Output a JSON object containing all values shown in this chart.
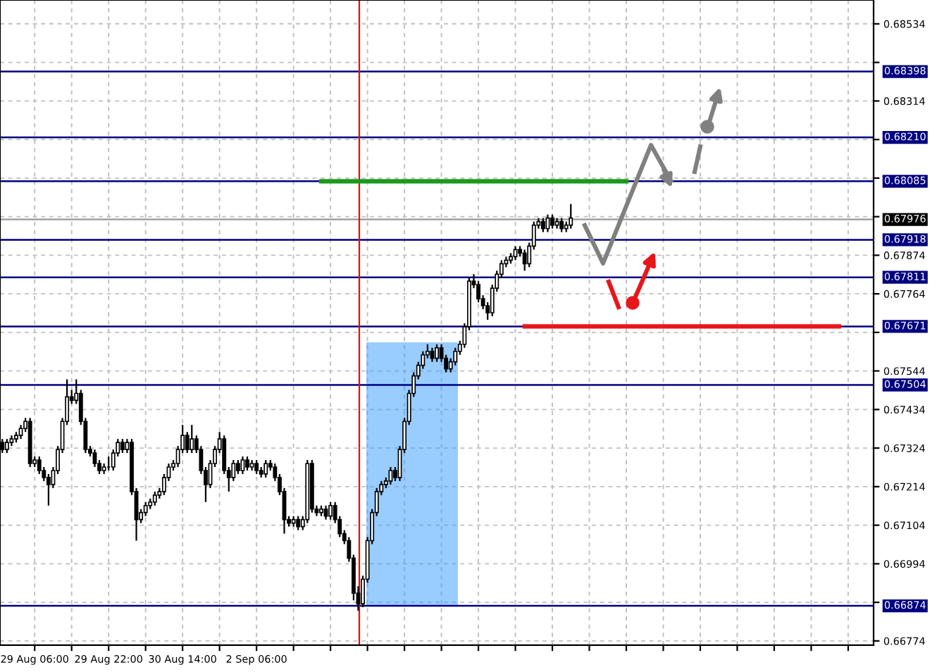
{
  "chart_data": {
    "type": "candlestick",
    "categories": [
      null,
      null,
      null,
      null,
      null,
      null,
      null,
      "29 Aug 06:00",
      null,
      null,
      null,
      null,
      null,
      null,
      null,
      null,
      null,
      null,
      null,
      null,
      null,
      null,
      null,
      "29 Aug 22:00",
      null,
      null,
      null,
      null,
      null,
      null,
      null,
      null,
      null,
      null,
      null,
      null,
      null,
      null,
      null,
      "30 Aug 14:00",
      null,
      null,
      null,
      null,
      null,
      null,
      null,
      null,
      null,
      null,
      null,
      null,
      null,
      null,
      null,
      "2 Sep 06:00",
      null,
      null,
      null,
      null,
      null,
      null,
      null,
      null,
      null,
      null,
      null,
      null,
      null,
      null,
      null,
      null,
      null,
      null,
      null,
      null,
      null,
      null,
      null,
      null,
      null,
      null,
      null,
      null,
      null,
      null,
      null,
      null,
      null,
      null,
      null,
      null,
      null,
      null,
      null,
      null,
      null,
      null,
      null,
      null,
      null,
      null,
      null,
      null,
      null,
      null,
      null,
      null,
      null,
      null,
      null,
      null,
      null,
      null,
      null,
      null,
      null,
      null,
      null,
      null,
      null,
      null,
      null,
      null,
      null,
      null,
      null,
      null,
      null,
      null,
      null,
      null,
      null,
      null,
      null,
      null,
      null,
      null,
      null,
      null,
      null,
      null,
      null,
      null,
      null,
      null,
      null,
      null,
      null,
      null,
      null,
      null,
      null,
      null,
      null,
      null,
      null,
      null,
      null,
      null,
      null,
      null,
      null,
      null,
      null,
      null,
      null,
      null,
      null,
      null,
      null,
      null,
      null,
      null,
      null,
      null,
      null,
      null,
      null,
      null,
      null,
      null,
      null,
      null,
      null,
      null,
      null,
      null,
      null
    ],
    "ohlc": [
      [
        0.6734,
        0.6735,
        0.6731,
        0.6732
      ],
      [
        0.6732,
        0.6735,
        0.6731,
        0.6734
      ],
      [
        0.6734,
        0.6736,
        0.6733,
        0.6735
      ],
      [
        0.6735,
        0.6737,
        0.6734,
        0.6736
      ],
      [
        0.6736,
        0.6739,
        0.6735,
        0.6738
      ],
      [
        0.6738,
        0.6741,
        0.6737,
        0.674
      ],
      [
        0.674,
        0.6741,
        0.6727,
        0.6728
      ],
      [
        0.6728,
        0.673,
        0.6727,
        0.6729
      ],
      [
        0.6729,
        0.673,
        0.6725,
        0.6726
      ],
      [
        0.6726,
        0.6727,
        0.6723,
        0.6724
      ],
      [
        0.6724,
        0.6725,
        0.6716,
        0.6722
      ],
      [
        0.6722,
        0.6727,
        0.6721,
        0.6726
      ],
      [
        0.6726,
        0.6733,
        0.6725,
        0.6732
      ],
      [
        0.6732,
        0.6741,
        0.6731,
        0.674
      ],
      [
        0.674,
        0.6752,
        0.6739,
        0.6747
      ],
      [
        0.6747,
        0.6749,
        0.6745,
        0.6746
      ],
      [
        0.6746,
        0.6752,
        0.6745,
        0.6748
      ],
      [
        0.6748,
        0.6749,
        0.6739,
        0.674
      ],
      [
        0.674,
        0.6741,
        0.6731,
        0.6732
      ],
      [
        0.6732,
        0.6733,
        0.673,
        0.6731
      ],
      [
        0.6731,
        0.6732,
        0.6727,
        0.6728
      ],
      [
        0.6728,
        0.6729,
        0.6725,
        0.6726
      ],
      [
        0.6726,
        0.6728,
        0.6725,
        0.6727
      ],
      [
        0.6727,
        0.673,
        0.6726,
        0.6727
      ],
      [
        0.6727,
        0.6732,
        0.6726,
        0.6731
      ],
      [
        0.6731,
        0.6735,
        0.673,
        0.6734
      ],
      [
        0.6734,
        0.6735,
        0.6731,
        0.6732
      ],
      [
        0.6732,
        0.6735,
        0.6731,
        0.6734
      ],
      [
        0.6734,
        0.6735,
        0.6719,
        0.672
      ],
      [
        0.672,
        0.6721,
        0.6706,
        0.6712
      ],
      [
        0.6712,
        0.6715,
        0.6711,
        0.6714
      ],
      [
        0.6714,
        0.6717,
        0.6713,
        0.6716
      ],
      [
        0.6716,
        0.6718,
        0.6715,
        0.6717
      ],
      [
        0.6717,
        0.672,
        0.6716,
        0.6719
      ],
      [
        0.6719,
        0.6721,
        0.6718,
        0.672
      ],
      [
        0.672,
        0.6725,
        0.6719,
        0.6724
      ],
      [
        0.6724,
        0.6728,
        0.6723,
        0.6727
      ],
      [
        0.6727,
        0.6729,
        0.6726,
        0.6728
      ],
      [
        0.6728,
        0.6733,
        0.6727,
        0.6732
      ],
      [
        0.6732,
        0.6739,
        0.6731,
        0.6736
      ],
      [
        0.6736,
        0.6737,
        0.6731,
        0.6732
      ],
      [
        0.6732,
        0.6739,
        0.6731,
        0.6735
      ],
      [
        0.6735,
        0.6736,
        0.6731,
        0.6732
      ],
      [
        0.6732,
        0.6733,
        0.6725,
        0.6726
      ],
      [
        0.6726,
        0.6727,
        0.6717,
        0.6722
      ],
      [
        0.6722,
        0.6729,
        0.6721,
        0.6728
      ],
      [
        0.6728,
        0.6733,
        0.6727,
        0.6732
      ],
      [
        0.6732,
        0.6737,
        0.6731,
        0.6735
      ],
      [
        0.6735,
        0.6736,
        0.6725,
        0.6726
      ],
      [
        0.6726,
        0.6727,
        0.672,
        0.6724
      ],
      [
        0.6724,
        0.6729,
        0.6723,
        0.6728
      ],
      [
        0.6728,
        0.6729,
        0.6725,
        0.6726
      ],
      [
        0.6726,
        0.673,
        0.6725,
        0.6729
      ],
      [
        0.6729,
        0.673,
        0.6726,
        0.6727
      ],
      [
        0.6727,
        0.6729,
        0.6726,
        0.6728
      ],
      [
        0.6728,
        0.6729,
        0.6725,
        0.6726
      ],
      [
        0.6726,
        0.6727,
        0.6724,
        0.6725
      ],
      [
        0.6725,
        0.6729,
        0.6724,
        0.6728
      ],
      [
        0.6728,
        0.6729,
        0.6726,
        0.6727
      ],
      [
        0.6727,
        0.6728,
        0.6723,
        0.6724
      ],
      [
        0.6724,
        0.6725,
        0.6719,
        0.672
      ],
      [
        0.672,
        0.6721,
        0.6708,
        0.6712
      ],
      [
        0.6712,
        0.6713,
        0.671,
        0.6711
      ],
      [
        0.6711,
        0.6713,
        0.671,
        0.6712
      ],
      [
        0.6712,
        0.6713,
        0.6709,
        0.671
      ],
      [
        0.671,
        0.6713,
        0.6709,
        0.6712
      ],
      [
        0.6712,
        0.6729,
        0.6711,
        0.6728
      ],
      [
        0.6728,
        0.6729,
        0.6714,
        0.6715
      ],
      [
        0.6715,
        0.6716,
        0.6713,
        0.6714
      ],
      [
        0.6714,
        0.6716,
        0.6713,
        0.6715
      ],
      [
        0.6715,
        0.6716,
        0.6712,
        0.6713
      ],
      [
        0.6713,
        0.6717,
        0.6712,
        0.6716
      ],
      [
        0.6716,
        0.6717,
        0.6711,
        0.6712
      ],
      [
        0.6712,
        0.6713,
        0.6707,
        0.6708
      ],
      [
        0.6708,
        0.6709,
        0.6705,
        0.6706
      ],
      [
        0.6706,
        0.6707,
        0.67,
        0.6701
      ],
      [
        0.6701,
        0.6702,
        0.6689,
        0.6691
      ],
      [
        0.6691,
        0.6693,
        0.6686,
        0.6688
      ],
      [
        0.6688,
        0.6696,
        0.6687,
        0.6695
      ],
      [
        0.6695,
        0.6707,
        0.6694,
        0.6706
      ],
      [
        0.6706,
        0.6715,
        0.6705,
        0.6714
      ],
      [
        0.6714,
        0.6721,
        0.6713,
        0.672
      ],
      [
        0.672,
        0.6723,
        0.6719,
        0.6722
      ],
      [
        0.6722,
        0.6724,
        0.6721,
        0.6723
      ],
      [
        0.6723,
        0.6727,
        0.6722,
        0.6726
      ],
      [
        0.6726,
        0.6727,
        0.6723,
        0.6724
      ],
      [
        0.6724,
        0.6733,
        0.6723,
        0.6732
      ],
      [
        0.6732,
        0.6741,
        0.6731,
        0.674
      ],
      [
        0.674,
        0.6749,
        0.6739,
        0.6748
      ],
      [
        0.6748,
        0.6754,
        0.6747,
        0.6753
      ],
      [
        0.6753,
        0.6757,
        0.6752,
        0.6756
      ],
      [
        0.6756,
        0.676,
        0.6755,
        0.6759
      ],
      [
        0.6759,
        0.6762,
        0.6758,
        0.676
      ],
      [
        0.676,
        0.6761,
        0.6757,
        0.6758
      ],
      [
        0.6758,
        0.6762,
        0.6757,
        0.6761
      ],
      [
        0.6761,
        0.6762,
        0.6757,
        0.6758
      ],
      [
        0.6758,
        0.6759,
        0.6754,
        0.6755
      ],
      [
        0.6755,
        0.6758,
        0.6754,
        0.6757
      ],
      [
        0.6757,
        0.6761,
        0.6756,
        0.676
      ],
      [
        0.676,
        0.6763,
        0.6759,
        0.6762
      ],
      [
        0.6762,
        0.6768,
        0.6761,
        0.6767
      ],
      [
        0.6767,
        0.6781,
        0.6766,
        0.678
      ],
      [
        0.678,
        0.6782,
        0.6778,
        0.6779
      ],
      [
        0.6779,
        0.678,
        0.6774,
        0.6775
      ],
      [
        0.6775,
        0.6776,
        0.6772,
        0.6773
      ],
      [
        0.6773,
        0.6774,
        0.6769,
        0.6771
      ],
      [
        0.6771,
        0.6779,
        0.677,
        0.6778
      ],
      [
        0.6778,
        0.6783,
        0.6777,
        0.6782
      ],
      [
        0.6782,
        0.6786,
        0.6781,
        0.6785
      ],
      [
        0.6785,
        0.6787,
        0.6784,
        0.6786
      ],
      [
        0.6786,
        0.6788,
        0.6785,
        0.6787
      ],
      [
        0.6787,
        0.679,
        0.6786,
        0.6789
      ],
      [
        0.6789,
        0.679,
        0.6787,
        0.6788
      ],
      [
        0.6788,
        0.6789,
        0.6783,
        0.6785
      ],
      [
        0.6785,
        0.6791,
        0.6784,
        0.679
      ],
      [
        0.679,
        0.6797,
        0.6789,
        0.6796
      ],
      [
        0.6796,
        0.6798,
        0.6795,
        0.6797
      ],
      [
        0.6797,
        0.6798,
        0.6794,
        0.6795
      ],
      [
        0.6795,
        0.6799,
        0.6794,
        0.6798
      ],
      [
        0.6798,
        0.6799,
        0.6795,
        0.6796
      ],
      [
        0.6796,
        0.6798,
        0.6795,
        0.6797
      ],
      [
        0.6797,
        0.6798,
        0.6794,
        0.6795
      ],
      [
        0.6795,
        0.6797,
        0.6794,
        0.6796
      ],
      [
        0.6796,
        0.6802,
        0.6795,
        0.6798
      ],
      null,
      null,
      null,
      null,
      null,
      null,
      null,
      null,
      null,
      null,
      null,
      null,
      null,
      null,
      null,
      null,
      null,
      null,
      null,
      null,
      null,
      null,
      null,
      null,
      null,
      null,
      null,
      null,
      null,
      null,
      null,
      null,
      null,
      null,
      null,
      null,
      null,
      null,
      null,
      null,
      null,
      null,
      null,
      null,
      null,
      null,
      null,
      null,
      null,
      null,
      null,
      null,
      null,
      null,
      null,
      null,
      null,
      null,
      null,
      null,
      null,
      null,
      null,
      null,
      null
    ],
    "series": [
      {
        "type": "line",
        "color": "#1a9a1a",
        "values": [
          null,
          null,
          null,
          null,
          null,
          null,
          null,
          null,
          null,
          null,
          null,
          null,
          null,
          null,
          null,
          null,
          null,
          null,
          null,
          null,
          null,
          null,
          null,
          null,
          null,
          null,
          null,
          null,
          null,
          null,
          null,
          null,
          null,
          null,
          null,
          null,
          null,
          null,
          null,
          null,
          null,
          null,
          null,
          null,
          null,
          null,
          null,
          null,
          null,
          null,
          null,
          null,
          null,
          null,
          null,
          null,
          null,
          null,
          null,
          null,
          null,
          null,
          null,
          null,
          null,
          null,
          null,
          null,
          null,
          0.68085,
          0.68085,
          0.68085,
          0.68085,
          0.68085,
          0.68085,
          0.68085,
          0.68085,
          0.68085,
          0.68085,
          0.68085,
          0.68085,
          0.68085,
          0.68085,
          0.68085,
          0.68085,
          0.68085,
          0.68085,
          0.68085,
          0.68085,
          0.68085,
          0.68085,
          0.68085,
          0.68085,
          0.68085,
          0.68085,
          0.68085,
          0.68085,
          0.68085,
          0.68085,
          0.68085,
          0.68085,
          0.68085,
          0.68085,
          0.68085,
          0.68085,
          0.68085,
          0.68085,
          0.68085,
          0.68085,
          0.68085,
          0.68085,
          0.68085,
          0.68085,
          0.68085,
          0.68085,
          0.68085,
          0.68085,
          0.68085,
          0.68085,
          0.68085,
          0.68085,
          0.68085,
          0.68085,
          0.68085,
          0.68085,
          0.68085,
          0.68085,
          0.68085,
          0.68085,
          0.68085,
          0.68085,
          0.68085,
          0.68085,
          0.68085,
          0.68085,
          0.68085,
          null,
          null,
          null,
          null,
          null,
          null,
          null,
          null,
          null,
          null,
          null,
          null,
          null,
          null,
          null,
          null,
          null,
          null,
          null,
          null,
          null,
          null,
          null,
          null,
          null,
          null,
          null,
          null,
          null,
          null,
          null,
          null,
          null,
          null,
          null,
          null,
          null,
          null,
          null,
          null,
          null,
          null,
          null,
          null,
          null,
          null,
          null,
          null,
          null,
          null,
          null,
          null,
          null
        ]
      },
      {
        "type": "line",
        "color": "#e8161b",
        "values": [
          null,
          null,
          null,
          null,
          null,
          null,
          null,
          null,
          null,
          null,
          null,
          null,
          null,
          null,
          null,
          null,
          null,
          null,
          null,
          null,
          null,
          null,
          null,
          null,
          null,
          null,
          null,
          null,
          null,
          null,
          null,
          null,
          null,
          null,
          null,
          null,
          null,
          null,
          null,
          null,
          null,
          null,
          null,
          null,
          null,
          null,
          null,
          null,
          null,
          null,
          null,
          null,
          null,
          null,
          null,
          null,
          null,
          null,
          null,
          null,
          null,
          null,
          null,
          null,
          null,
          null,
          null,
          null,
          null,
          null,
          null,
          null,
          null,
          null,
          null,
          null,
          null,
          null,
          null,
          null,
          null,
          null,
          null,
          null,
          null,
          null,
          null,
          null,
          null,
          null,
          null,
          null,
          null,
          null,
          null,
          null,
          null,
          null,
          null,
          null,
          null,
          null,
          null,
          null,
          null,
          null,
          null,
          null,
          null,
          null,
          null,
          null,
          null,
          0.67671,
          0.67671,
          0.67671,
          0.67671,
          0.67671,
          0.67671,
          0.67671,
          0.67671,
          0.67671,
          0.67671,
          0.67671,
          0.67671,
          0.67671,
          0.67671,
          0.67671,
          0.67671,
          0.67671,
          0.67671,
          0.67671,
          0.67671,
          0.67671,
          0.67671,
          0.67671,
          0.67671,
          0.67671,
          0.67671,
          0.67671,
          0.67671,
          0.67671,
          0.67671,
          0.67671,
          0.67671,
          0.67671,
          0.67671,
          0.67671,
          0.67671,
          0.67671,
          0.67671,
          0.67671,
          0.67671,
          0.67671,
          0.67671,
          0.67671,
          0.67671,
          0.67671,
          0.67671,
          0.67671,
          0.67671,
          0.67671,
          0.67671,
          0.67671,
          0.67671,
          0.67671,
          0.67671,
          0.67671,
          0.67671,
          0.67671,
          0.67671,
          0.67671,
          0.67671,
          0.67671,
          0.67671,
          0.67671,
          0.67671,
          0.67671,
          0.67671,
          0.67671,
          0.67671,
          0.67671,
          null,
          null,
          null,
          null,
          null,
          null,
          null
        ]
      }
    ],
    "ylim": [
      0.66762,
      0.68602
    ],
    "yticks": [
      0.68534,
      {
        "value": 0.68424,
        "label": null
      },
      0.68314,
      {
        "value": 0.68204,
        "label": null
      },
      {
        "value": 0.68094,
        "label": null
      },
      {
        "value": 0.67984,
        "label": null
      },
      0.67874,
      0.67764,
      {
        "value": 0.67654,
        "label": null
      },
      0.67544,
      0.67434,
      0.67324,
      0.67214,
      0.67104,
      0.66994,
      {
        "value": 0.66884,
        "label": null
      },
      0.66774
    ],
    "ref_lines": [
      {
        "axis": "y",
        "value": 0.68398,
        "label": "0.68398",
        "color": "#000080"
      },
      {
        "axis": "y",
        "value": 0.6821,
        "label": "0.68210",
        "color": "#000080"
      },
      {
        "axis": "y",
        "value": 0.68085,
        "label": "0.68085",
        "color": "#000080"
      },
      {
        "axis": "y",
        "value": 0.67976,
        "label": "0.67976",
        "color": "#a0a0a0"
      },
      {
        "axis": "y",
        "value": 0.67918,
        "label": "0.67918",
        "color": "#000080"
      },
      {
        "axis": "y",
        "value": 0.67811,
        "label": "0.67811",
        "color": "#000080"
      },
      {
        "axis": "y",
        "value": 0.67671,
        "label": "0.67671",
        "color": "#000080"
      },
      {
        "axis": "y",
        "value": 0.67504,
        "label": "0.67504",
        "color": "#000080"
      },
      {
        "axis": "y",
        "value": 0.66874,
        "label": "0.66874",
        "color": "#000080"
      }
    ],
    "grid": true,
    "legend": false
  }
}
